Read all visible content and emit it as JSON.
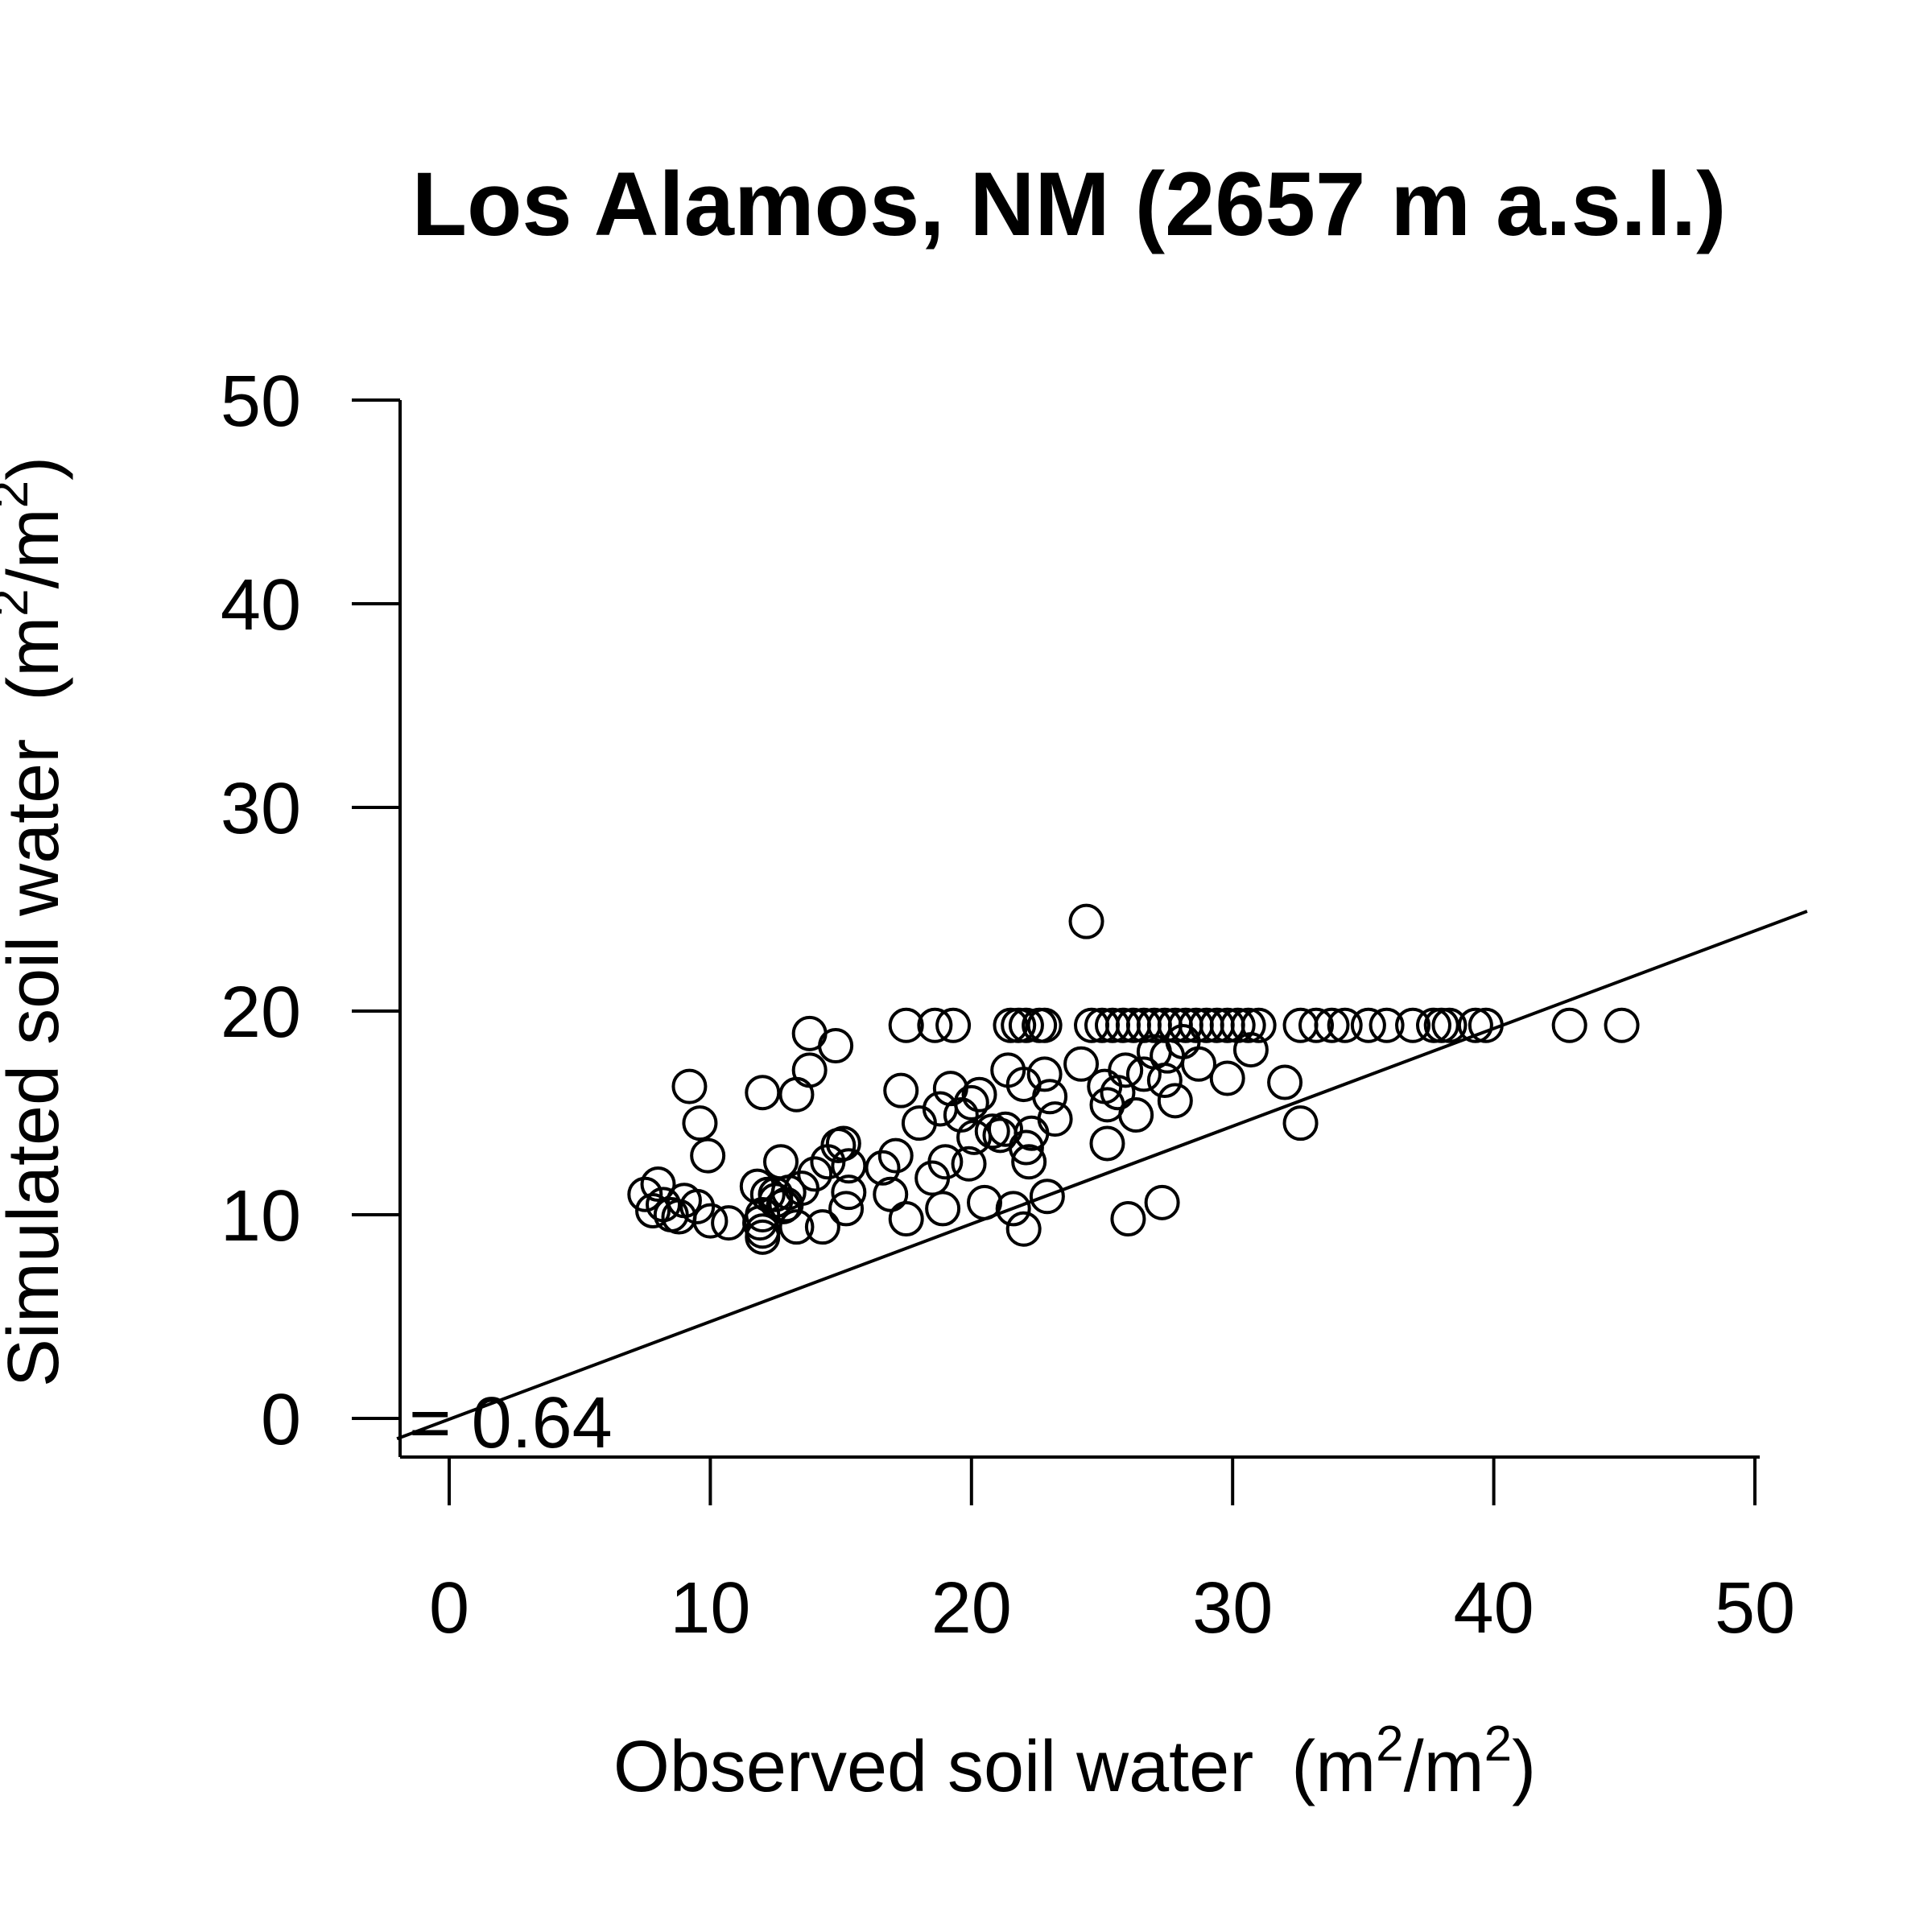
{
  "chart_data": {
    "type": "scatter",
    "title": "Los Alamos, NM (2657 m a.s.l.)",
    "xlabel": "Observed soil water",
    "ylabel": "Simulated soil water",
    "unit": {
      "base": "m",
      "exp": "2",
      "slash": "/",
      "open": "(",
      "close": ")"
    },
    "xlim": [
      -2,
      52
    ],
    "ylim": [
      -2,
      52
    ],
    "xticks": [
      0,
      10,
      20,
      30,
      40,
      50
    ],
    "yticks": [
      0,
      10,
      20,
      30,
      40,
      50
    ],
    "annotation": "= 0.64",
    "fit_line": {
      "x": [
        -2,
        52
      ],
      "y": [
        -1.0,
        24.9
      ]
    },
    "marker": "open-circle",
    "color": "#000000",
    "points": [
      [
        24.4,
        24.4
      ],
      [
        8.0,
        11.5
      ],
      [
        7.5,
        11.0
      ],
      [
        8.2,
        10.5
      ],
      [
        8.5,
        10.0
      ],
      [
        7.8,
        10.2
      ],
      [
        8.8,
        9.9
      ],
      [
        9.0,
        10.7
      ],
      [
        9.5,
        10.4
      ],
      [
        10.0,
        9.7
      ],
      [
        10.7,
        9.6
      ],
      [
        9.2,
        16.3
      ],
      [
        9.6,
        14.5
      ],
      [
        9.9,
        12.9
      ],
      [
        12.0,
        16.0
      ],
      [
        13.3,
        15.9
      ],
      [
        13.8,
        17.1
      ],
      [
        13.8,
        18.9
      ],
      [
        14.8,
        18.3
      ],
      [
        11.8,
        11.4
      ],
      [
        12.2,
        11.0
      ],
      [
        12.5,
        10.7
      ],
      [
        12.7,
        12.6
      ],
      [
        12.5,
        11.0
      ],
      [
        13.0,
        11.1
      ],
      [
        12.9,
        10.5
      ],
      [
        13.3,
        9.4
      ],
      [
        14.3,
        9.4
      ],
      [
        12.0,
        9.2
      ],
      [
        12.0,
        8.9
      ],
      [
        11.9,
        9.6
      ],
      [
        12.0,
        10.0
      ],
      [
        12.8,
        10.4
      ],
      [
        13.5,
        11.3
      ],
      [
        14.0,
        12.0
      ],
      [
        14.5,
        12.6
      ],
      [
        14.9,
        13.4
      ],
      [
        15.1,
        13.5
      ],
      [
        15.3,
        12.4
      ],
      [
        15.3,
        11.1
      ],
      [
        15.2,
        10.3
      ],
      [
        16.6,
        12.3
      ],
      [
        16.9,
        11.0
      ],
      [
        17.1,
        12.9
      ],
      [
        17.5,
        9.8
      ],
      [
        17.3,
        16.1
      ],
      [
        17.5,
        19.3
      ],
      [
        18.6,
        19.3
      ],
      [
        19.3,
        19.3
      ],
      [
        18.0,
        14.5
      ],
      [
        18.5,
        11.8
      ],
      [
        18.8,
        15.2
      ],
      [
        19.0,
        12.6
      ],
      [
        18.9,
        10.3
      ],
      [
        19.2,
        16.2
      ],
      [
        19.6,
        14.9
      ],
      [
        20.0,
        15.5
      ],
      [
        20.3,
        15.9
      ],
      [
        19.9,
        12.5
      ],
      [
        20.1,
        13.8
      ],
      [
        20.5,
        10.6
      ],
      [
        20.8,
        14.1
      ],
      [
        21.1,
        13.9
      ],
      [
        21.3,
        14.2
      ],
      [
        21.4,
        17.1
      ],
      [
        21.5,
        19.3
      ],
      [
        21.8,
        19.3
      ],
      [
        22.1,
        19.3
      ],
      [
        22.6,
        19.3
      ],
      [
        22.8,
        19.3
      ],
      [
        22.0,
        16.4
      ],
      [
        22.3,
        14.0
      ],
      [
        22.2,
        12.6
      ],
      [
        21.6,
        10.3
      ],
      [
        22.0,
        9.3
      ],
      [
        22.1,
        13.3
      ],
      [
        22.8,
        16.9
      ],
      [
        23.0,
        15.8
      ],
      [
        23.2,
        14.7
      ],
      [
        22.9,
        10.9
      ],
      [
        24.2,
        17.4
      ],
      [
        24.6,
        19.3
      ],
      [
        25.0,
        19.3
      ],
      [
        25.4,
        19.3
      ],
      [
        25.8,
        19.3
      ],
      [
        26.2,
        19.3
      ],
      [
        26.6,
        19.3
      ],
      [
        27.0,
        19.3
      ],
      [
        27.4,
        19.3
      ],
      [
        27.8,
        19.3
      ],
      [
        28.2,
        19.3
      ],
      [
        28.6,
        19.3
      ],
      [
        29.0,
        19.3
      ],
      [
        29.4,
        19.3
      ],
      [
        29.8,
        19.3
      ],
      [
        30.2,
        19.3
      ],
      [
        30.6,
        19.3
      ],
      [
        31.0,
        19.3
      ],
      [
        25.1,
        16.3
      ],
      [
        25.2,
        15.4
      ],
      [
        25.2,
        13.5
      ],
      [
        25.6,
        16.0
      ],
      [
        25.9,
        17.1
      ],
      [
        26.3,
        14.9
      ],
      [
        26.6,
        16.9
      ],
      [
        27.0,
        18.0
      ],
      [
        27.4,
        16.6
      ],
      [
        27.8,
        15.6
      ],
      [
        28.1,
        18.5
      ],
      [
        28.7,
        17.4
      ],
      [
        26.0,
        9.8
      ],
      [
        27.3,
        10.6
      ],
      [
        27.5,
        17.8
      ],
      [
        29.8,
        16.7
      ],
      [
        30.7,
        18.1
      ],
      [
        32.0,
        16.5
      ],
      [
        32.6,
        14.5
      ],
      [
        32.6,
        19.3
      ],
      [
        33.2,
        19.3
      ],
      [
        33.8,
        19.3
      ],
      [
        34.3,
        19.3
      ],
      [
        35.2,
        19.3
      ],
      [
        35.9,
        19.3
      ],
      [
        36.9,
        19.3
      ],
      [
        37.7,
        19.3
      ],
      [
        38.0,
        19.3
      ],
      [
        38.3,
        19.3
      ],
      [
        39.3,
        19.3
      ],
      [
        39.7,
        19.3
      ],
      [
        42.9,
        19.3
      ],
      [
        44.9,
        19.3
      ]
    ]
  }
}
